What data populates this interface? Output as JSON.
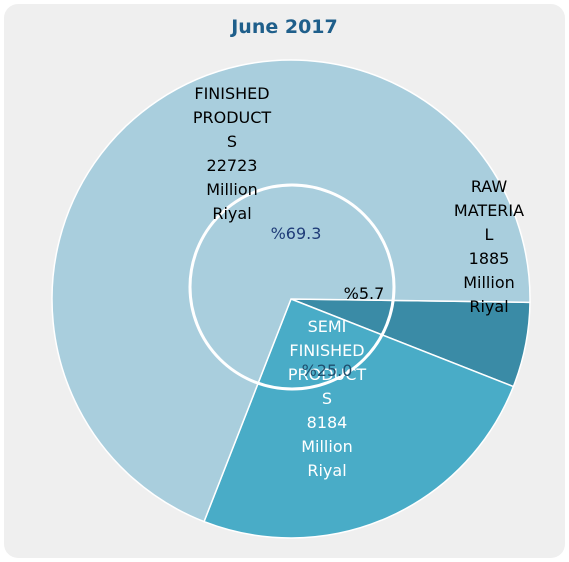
{
  "chart_data": {
    "type": "pie",
    "title": "June 2017",
    "unit": "Million Riyal",
    "colors": {
      "finished": "#a9cedd",
      "semi": "#49acc7",
      "raw": "#3a8ba6",
      "percent_text": "#1f3c78",
      "label_text": "#000000",
      "ring": "#ffffff"
    },
    "slices": [
      {
        "key": "finished",
        "name_lines": [
          "FINISHED",
          "PRODUCT",
          "S"
        ],
        "value": 22723,
        "value_text": "22723",
        "unit_lines": [
          "Million",
          "Riyal"
        ],
        "percent": 69.3,
        "percent_text": "%69.3"
      },
      {
        "key": "semi",
        "name_lines": [
          "SEMI",
          "FINISHED",
          "PRODUCT",
          "S"
        ],
        "value": 8184,
        "value_text": "8184",
        "unit_lines": [
          "Million",
          "Riyal"
        ],
        "percent": 25.0,
        "percent_text": "%25.0"
      },
      {
        "key": "raw",
        "name_lines": [
          "RAW",
          "MATERIA",
          "L"
        ],
        "value": 1885,
        "value_text": "1885",
        "unit_lines": [
          "Million",
          "Riyal"
        ],
        "percent": 5.7,
        "percent_text": "%5.7"
      }
    ]
  }
}
